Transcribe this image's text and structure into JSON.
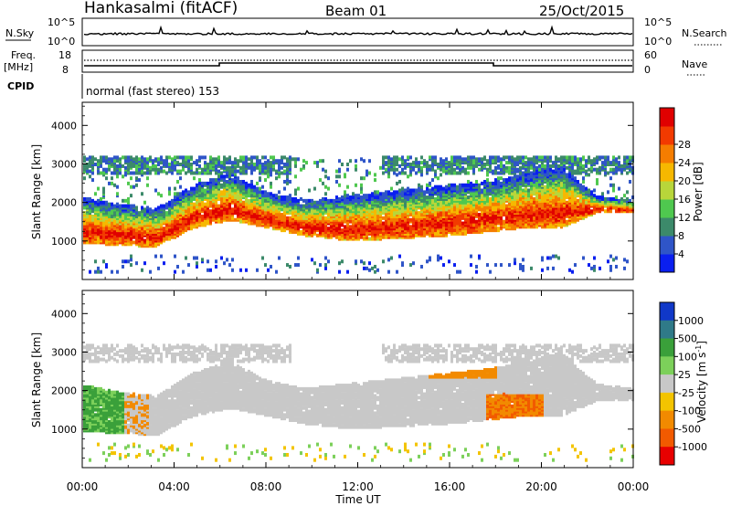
{
  "header": {
    "station": "Hankasalmi (fitACF)",
    "beam": "Beam 01",
    "date": "25/Oct/2015"
  },
  "panels": {
    "nsky": {
      "left_label": "N.Sky",
      "right_label": "N.Search",
      "left_ticks": [
        "10^5",
        "10^0"
      ],
      "right_ticks": [
        "10^5",
        "10^0"
      ]
    },
    "freq": {
      "left_label_line1": "Freq.",
      "left_label_line2": "[MHz]",
      "right_label": "Nave",
      "left_ticks": [
        "18",
        "8"
      ],
      "right_ticks": [
        "60",
        "0"
      ]
    },
    "cpid": {
      "label": "CPID",
      "text": "normal (fast stereo) 153"
    }
  },
  "chart_data": [
    {
      "type": "heatmap",
      "title": "",
      "xlabel": "",
      "ylabel": "Slant Range [km]",
      "x_range_hours": [
        0,
        24
      ],
      "x_ticks": [
        "00:00",
        "04:00",
        "08:00",
        "12:00",
        "16:00",
        "20:00",
        "00:00"
      ],
      "ylim": [
        0,
        4600
      ],
      "y_ticks": [
        1000,
        2000,
        3000,
        4000
      ],
      "colorbar": {
        "label": "Power [dB]",
        "range": [
          0,
          32
        ],
        "ticks": [
          "4",
          "8",
          "12",
          "16",
          "20",
          "24",
          "28"
        ],
        "colors": [
          "#0a1ff0",
          "#2f55c8",
          "#3c8a6a",
          "#4fc84f",
          "#b8d63a",
          "#f6b800",
          "#f57d00",
          "#f23a00",
          "#e00000"
        ]
      },
      "bands": [
        {
          "name": "main_echo_band",
          "lower_km": [
            900,
            850,
            800,
            1300,
            1500,
            1300,
            1100,
            1000,
            1000,
            1050,
            1100,
            1200,
            1300,
            1300,
            1700,
            1700
          ],
          "upper_km": [
            2100,
            1900,
            1800,
            2400,
            2700,
            2200,
            2000,
            2100,
            2200,
            2300,
            2400,
            2500,
            2700,
            2900,
            2100,
            2000
          ],
          "peak_db": 30
        }
      ]
    },
    {
      "type": "heatmap",
      "title": "",
      "xlabel": "Time UT",
      "ylabel": "Slant Range [km]",
      "x_range_hours": [
        0,
        24
      ],
      "x_ticks": [
        "00:00",
        "04:00",
        "08:00",
        "12:00",
        "16:00",
        "20:00",
        "00:00"
      ],
      "ylim": [
        0,
        4600
      ],
      "y_ticks": [
        1000,
        2000,
        3000,
        4000
      ],
      "colorbar": {
        "label": "Velocity [m s^-1]",
        "range": [
          -1000,
          1000
        ],
        "ticks": [
          "1000",
          "500",
          "100",
          "25",
          "-25",
          "-100",
          "-500",
          "-1000"
        ],
        "colors": [
          "#1038c8",
          "#2f7a88",
          "#3aa03a",
          "#7cd05a",
          "#c8c8c8",
          "#f3c400",
          "#f28a00",
          "#f25a00",
          "#e80000"
        ]
      }
    }
  ],
  "bottom_axis": {
    "xlabel": "Time UT"
  }
}
